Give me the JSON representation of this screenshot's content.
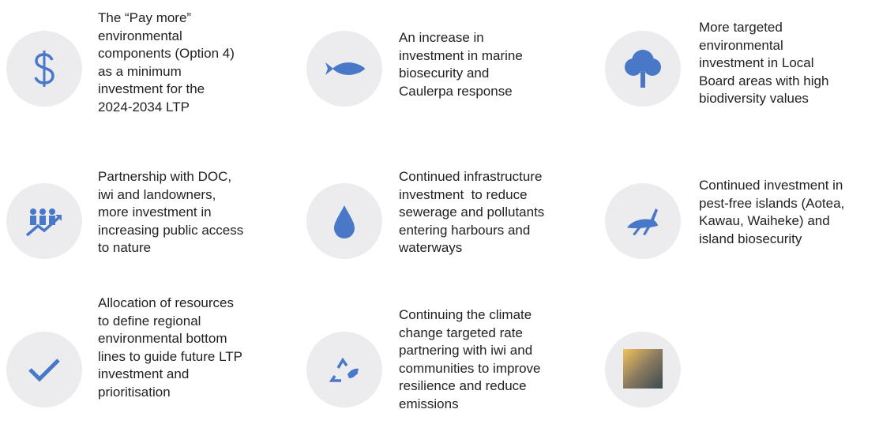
{
  "items": [
    {
      "lines": [
        "The “Pay more”",
        "environmental",
        "components (Option 4)",
        "as a minimum",
        "investment for the",
        "2024-2034 LTP"
      ]
    },
    {
      "lines": [
        "An increase in",
        "investment in marine",
        "biosecurity and",
        "Caulerpa response"
      ]
    },
    {
      "lines": [
        "More targeted",
        "environmental",
        "investment in Local",
        "Board areas with high",
        "biodiversity values"
      ]
    },
    {
      "lines": [
        "Partnership with DOC,",
        "iwi and landowners,",
        "more investment in",
        "increasing public access",
        "to nature"
      ]
    },
    {
      "lines": [
        "Continued infrastructure",
        "investment  to reduce",
        "sewerage and pollutants",
        "entering harbours and",
        "waterways"
      ]
    },
    {
      "lines": [
        "Continued investment in",
        "pest-free islands (Aotea,",
        "Kawau, Waiheke) and",
        "island biosecurity"
      ]
    },
    {
      "lines": [
        "Allocation of resources",
        "to define regional",
        "environmental bottom",
        "lines to guide future LTP",
        "investment and",
        "prioritisation"
      ]
    },
    {
      "lines": [
        "Continuing the climate",
        "change targeted rate",
        "partnering with iwi and",
        "communities to improve",
        "resilience and reduce",
        "emissions"
      ]
    }
  ]
}
